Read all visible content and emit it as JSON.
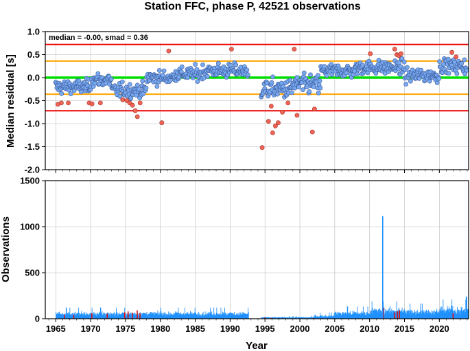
{
  "title": "Station FFC, phase P, 42521 observations",
  "annotation": "median = -0.00, smad = 0.36",
  "xlabel": "Year",
  "colors": {
    "median_line": "#00dd00",
    "smad_lines": "#ffa500",
    "two_smad_lines": "#ee0000",
    "point_normal": "#78a8f0",
    "point_outlier": "#f06458",
    "bar_normal": "#1e90ff",
    "bar_outlier": "#dd1111"
  },
  "chart_data": [
    {
      "type": "scatter",
      "ylabel": "Median residual [s]",
      "xlim": [
        1963.5,
        2024.2
      ],
      "ylim": [
        -2.0,
        1.0
      ],
      "x_ticks": [
        1965,
        1970,
        1975,
        1980,
        1985,
        1990,
        1995,
        2000,
        2005,
        2010,
        2015,
        2020
      ],
      "y_ticks": [
        "1.0",
        "0.5",
        "0.0",
        "-0.5",
        "-1.0",
        "-1.5",
        "-2.0"
      ],
      "grid": true,
      "reference_lines": [
        {
          "name": "median",
          "value": 0.0
        },
        {
          "name": "+smad",
          "value": 0.36
        },
        {
          "name": "-smad",
          "value": -0.36
        },
        {
          "name": "+2smad",
          "value": 0.72
        },
        {
          "name": "-2smad",
          "value": -0.72
        }
      ],
      "outliers": [
        [
          1965.3,
          -0.58
        ],
        [
          1965.8,
          -0.55
        ],
        [
          1966.8,
          -0.55
        ],
        [
          1969.8,
          -0.55
        ],
        [
          1970.2,
          -0.57
        ],
        [
          1971.4,
          -0.55
        ],
        [
          1974.6,
          -0.48
        ],
        [
          1975.2,
          -0.5
        ],
        [
          1975.6,
          -0.55
        ],
        [
          1976.0,
          -0.6
        ],
        [
          1976.4,
          -0.72
        ],
        [
          1976.7,
          -0.85
        ],
        [
          1977.1,
          -0.55
        ],
        [
          1980.2,
          -0.98
        ],
        [
          1981.2,
          0.58
        ],
        [
          1990.2,
          0.62
        ],
        [
          1994.6,
          -1.52
        ],
        [
          1995.5,
          -0.95
        ],
        [
          1995.9,
          -0.62
        ],
        [
          1996.1,
          -1.2
        ],
        [
          1996.5,
          -1.05
        ],
        [
          1996.9,
          -0.98
        ],
        [
          1997.5,
          -0.75
        ],
        [
          1998.3,
          -0.55
        ],
        [
          1999.2,
          0.62
        ],
        [
          1999.6,
          -0.82
        ],
        [
          2001.8,
          -1.18
        ],
        [
          2002.1,
          -0.68
        ],
        [
          2010.1,
          0.52
        ],
        [
          2013.6,
          0.62
        ],
        [
          2013.9,
          0.5
        ],
        [
          2014.2,
          0.48
        ],
        [
          2014.5,
          0.52
        ],
        [
          2021.8,
          0.55
        ],
        [
          2022.4,
          0.45
        ]
      ]
    },
    {
      "type": "bar",
      "ylabel": "Observations",
      "xlim": [
        1963.5,
        2024.2
      ],
      "ylim": [
        0,
        1500
      ],
      "x_ticks": [
        1965,
        1970,
        1975,
        1980,
        1985,
        1990,
        1995,
        2000,
        2005,
        2010,
        2015,
        2020
      ],
      "y_ticks": [
        "1500",
        "1000",
        "500",
        "0"
      ],
      "grid": true,
      "peak": {
        "x": 2011.8,
        "value": 1115
      },
      "outlier_bars": [
        [
          1966.2,
          45
        ],
        [
          1967.5,
          40
        ],
        [
          1970.1,
          60
        ],
        [
          1972.3,
          55
        ],
        [
          1974.8,
          70
        ],
        [
          1975.3,
          80
        ],
        [
          1975.9,
          65
        ],
        [
          1976.6,
          90
        ],
        [
          1977.0,
          60
        ],
        [
          1994.9,
          12
        ],
        [
          1995.8,
          10
        ],
        [
          2001.9,
          8
        ],
        [
          2011.9,
          120
        ],
        [
          2013.5,
          70
        ],
        [
          2013.9,
          80
        ],
        [
          2014.2,
          90
        ],
        [
          2021.9,
          60
        ]
      ]
    }
  ]
}
